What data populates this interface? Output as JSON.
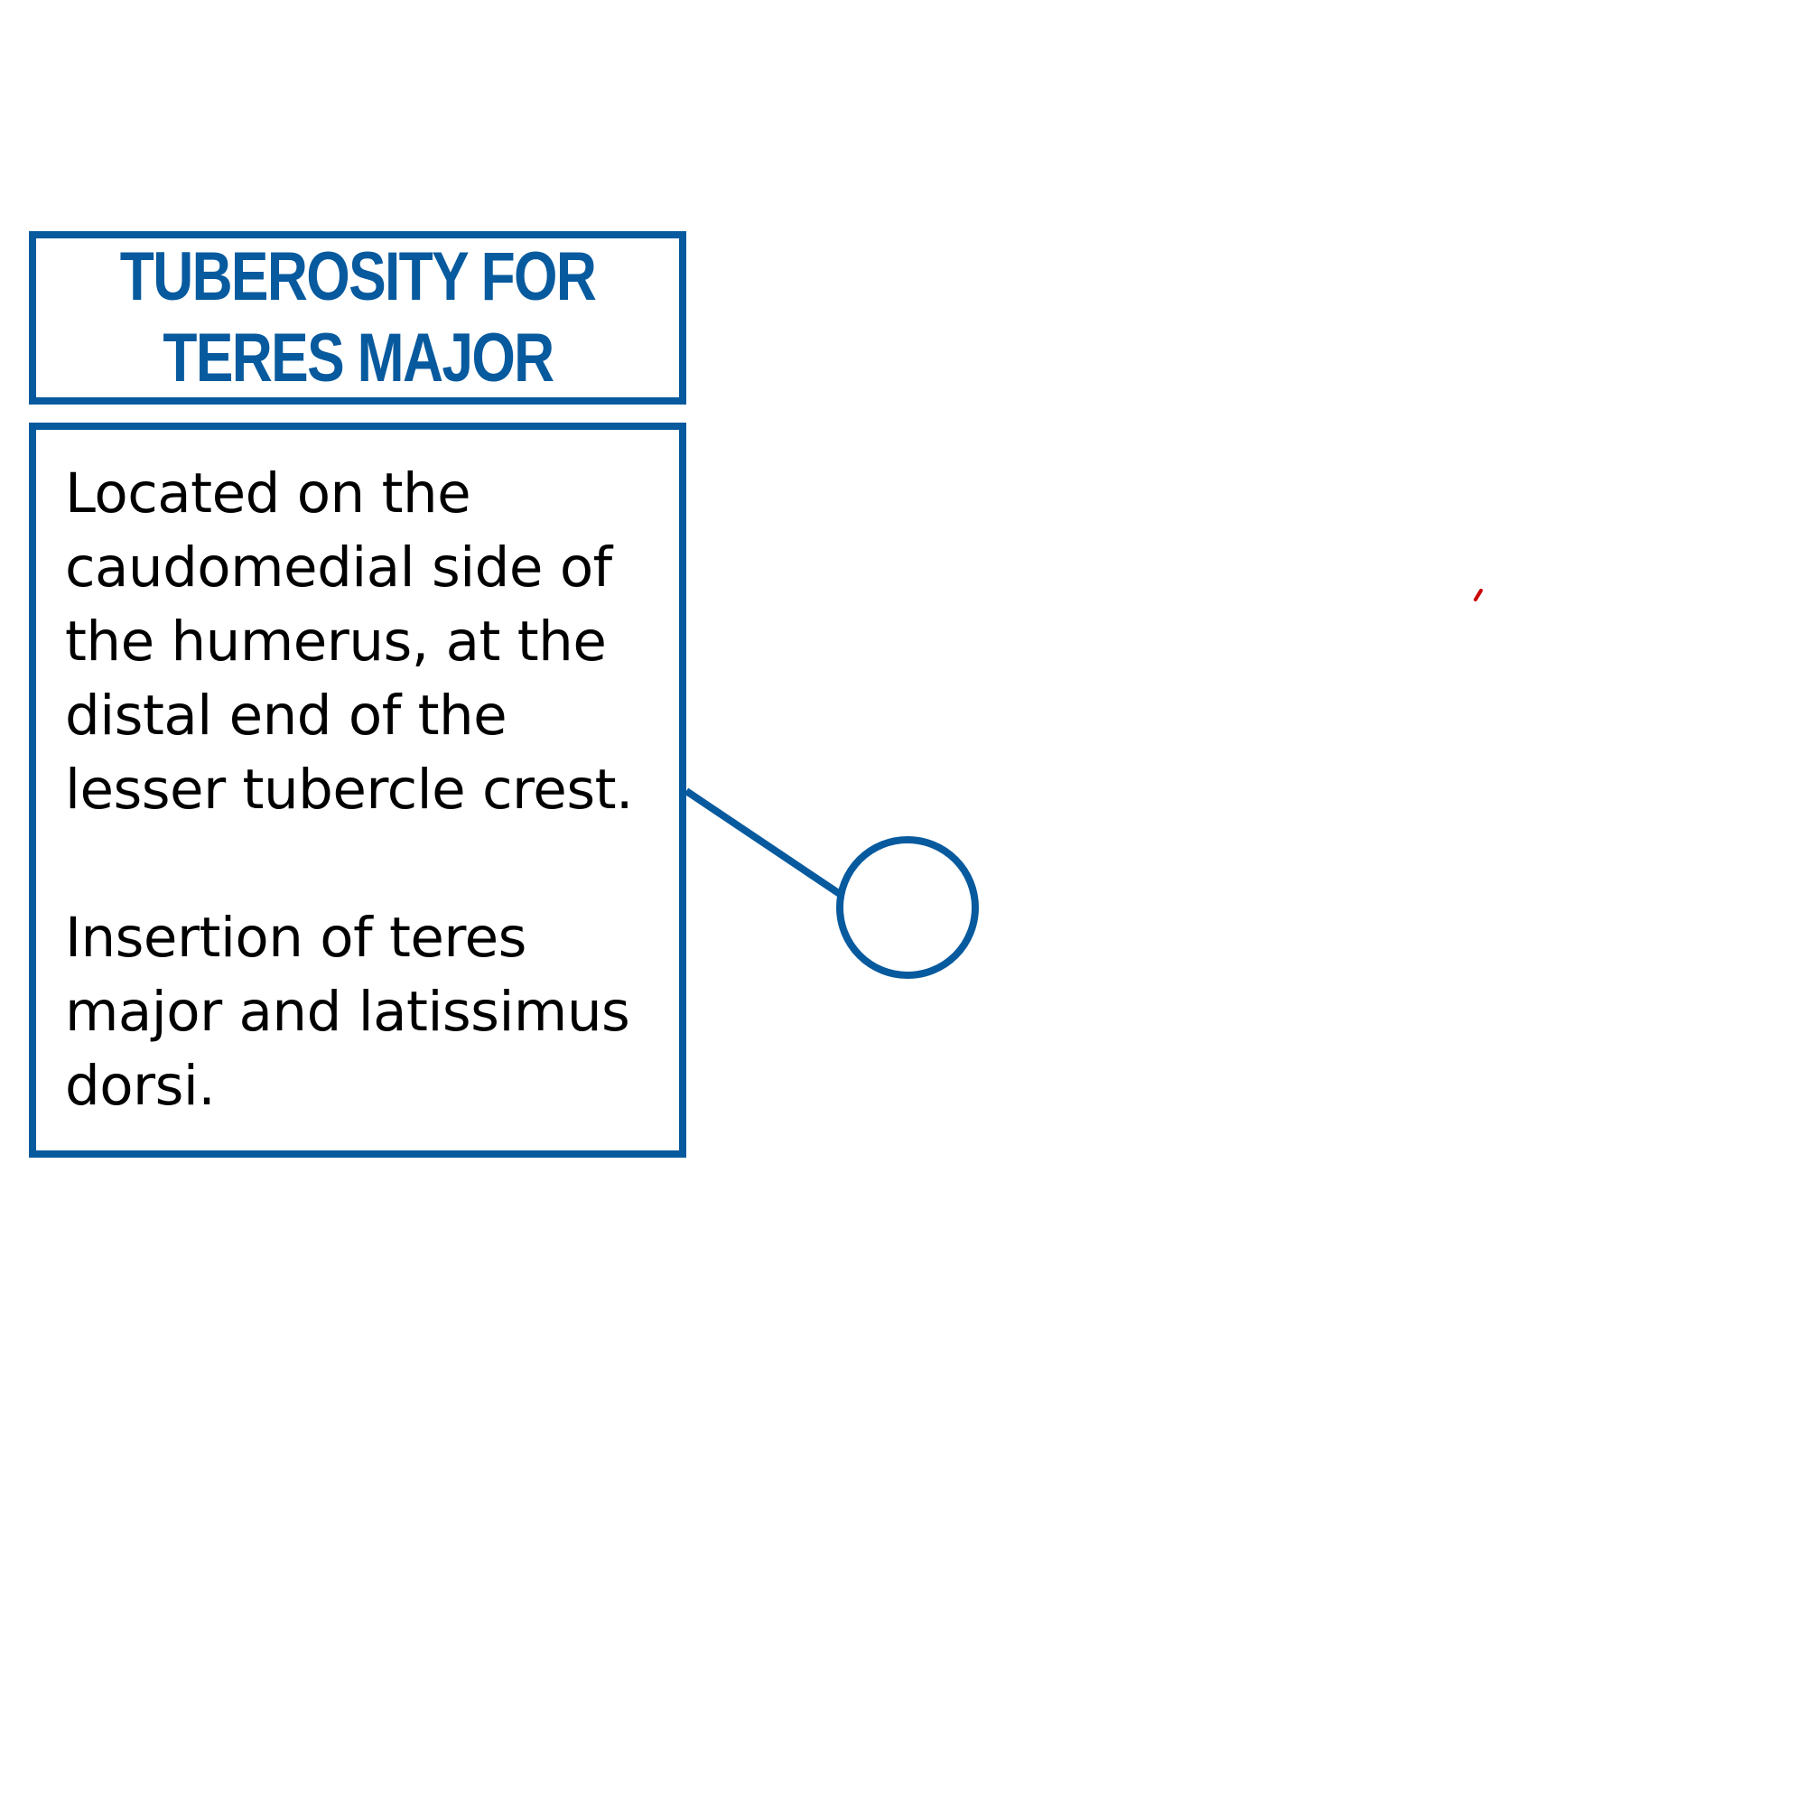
{
  "annotation": {
    "title_lines": [
      "TUBEROSITY FOR",
      "TERES MAJOR"
    ],
    "paragraphs": [
      "Located on the\ncaudomedial side of\nthe humerus, at the\ndistal end of the\nlesser tubercle crest.",
      "Insertion of teres\nmajor and latissimus\ndorsi."
    ]
  },
  "colors": {
    "accent": "#085a9e",
    "text": "#000000",
    "background": "#ffffff",
    "marker": "#cc0000"
  }
}
